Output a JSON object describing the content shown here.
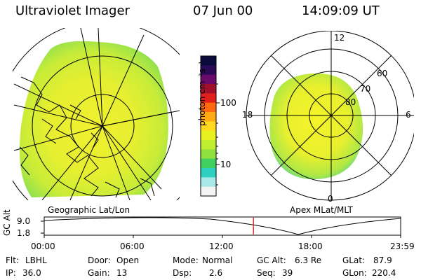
{
  "header": {
    "title": "Ultraviolet Imager",
    "date": "07 Jun 00",
    "time": "14:09:09 UT"
  },
  "left_panel": {
    "caption": "Geographic Lat/Lon"
  },
  "right_panel": {
    "caption": "Apex MLat/MLT",
    "mlt_labels": [
      "12",
      "6",
      "0",
      "18"
    ],
    "mlat_labels": [
      "60",
      "70",
      "80"
    ]
  },
  "colorbar": {
    "label": "photon cm⁻²s⁻¹",
    "ticks": [
      "100",
      "10"
    ],
    "colors": [
      "#0a0a3c",
      "#2a0a55",
      "#6a0a6a",
      "#a0102a",
      "#e0201a",
      "#ff6a10",
      "#ffaa10",
      "#ffd820",
      "#e8f020",
      "#c0ee30",
      "#90e040",
      "#40d060",
      "#30d0c0",
      "#a8e8e8",
      "#f4f4f4"
    ]
  },
  "timeline": {
    "axis_label": "GC Alt",
    "y_ticks": [
      "9.0",
      "1.8"
    ],
    "x_ticks": [
      "00:00",
      "06:00",
      "12:00",
      "18:00",
      "23:59"
    ],
    "current_time_fraction": 0.587,
    "marker_color": "#e00000"
  },
  "status": {
    "row1": [
      {
        "label": "Flt:",
        "value": "LBHL"
      },
      {
        "label": "Door:",
        "value": "Open"
      },
      {
        "label": "Mode:",
        "value": "Normal"
      },
      {
        "label": "GC Alt:",
        "value": "6.3 Re"
      },
      {
        "label": "GLat:",
        "value": "87.9"
      }
    ],
    "row2": [
      {
        "label": "IP:",
        "value": "36.0"
      },
      {
        "label": "Gain:",
        "value": "13"
      },
      {
        "label": "Dsp:",
        "value": "2.6"
      },
      {
        "label": "Seq:",
        "value": "39"
      },
      {
        "label": "GLon:",
        "value": "220.4"
      }
    ]
  }
}
